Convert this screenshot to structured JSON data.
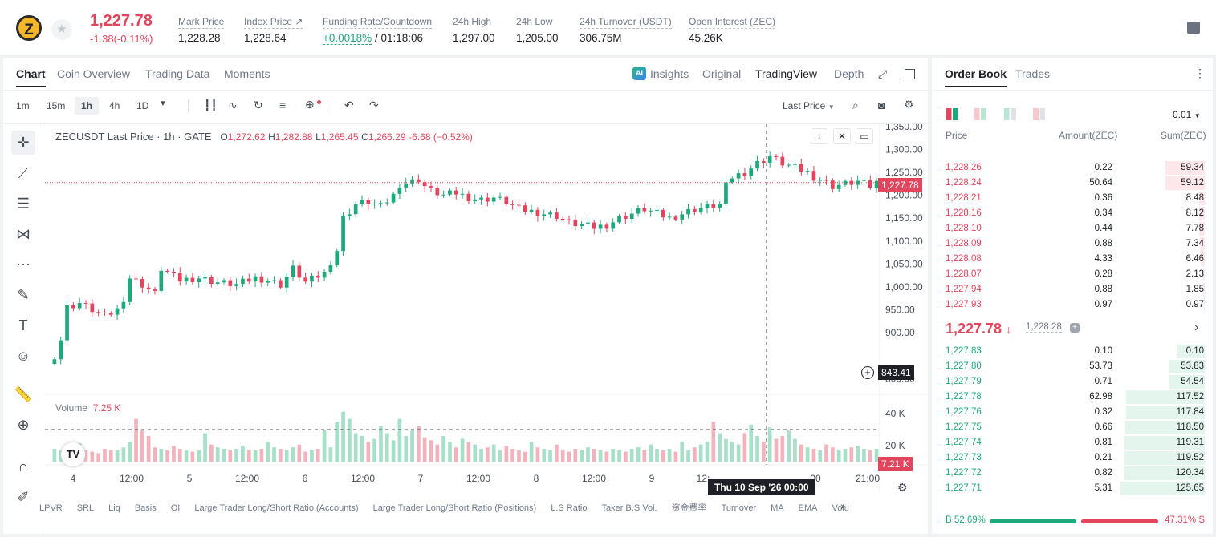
{
  "header": {
    "logo_letter": "Z",
    "last_price": "1,227.78",
    "change": "-1.38(-0.11%)",
    "stats": [
      {
        "label": "Mark Price",
        "value": "1,228.28"
      },
      {
        "label": "Index Price ↗",
        "value": "1,228.64"
      },
      {
        "label": "Funding Rate/Countdown",
        "value_green": "+0.0018%",
        "value": " / 01:18:06"
      },
      {
        "label": "24h High",
        "value": "1,297.00"
      },
      {
        "label": "24h Low",
        "value": "1,205.00"
      },
      {
        "label": "24h Turnover (USDT)",
        "value": "306.75M"
      },
      {
        "label": "Open Interest (ZEC)",
        "value": "45.26K"
      }
    ]
  },
  "chart_tabs": [
    "Chart",
    "Coin Overview",
    "Trading Data",
    "Moments"
  ],
  "view_tabs": {
    "insights": "Insights",
    "original": "Original",
    "tradingview": "TradingView",
    "depth": "Depth"
  },
  "intervals": [
    "1m",
    "15m",
    "1h",
    "4h",
    "1D"
  ],
  "price_source": "Last Price",
  "legend": {
    "symbol": "ZECUSDT Last Price · 1h · GATE",
    "o": "1,272.62",
    "h": "1,282.88",
    "l": "1,265.45",
    "c": "1,266.29",
    "chg": "-6.68 (−0.52%)"
  },
  "volume_legend": {
    "label": "Volume",
    "value": "7.25 K"
  },
  "crosshair": {
    "time": "Thu 10 Sep '26   00:00",
    "price": "843.41"
  },
  "indicators": [
    "LPVR",
    "SRL",
    "Liq",
    "Basis",
    "OI",
    "Large Trader Long/Short Ratio (Accounts)",
    "Large Trader Long/Short Ratio (Positions)",
    "L.S Ratio",
    "Taker B.S Vol.",
    "资金费率",
    "Turnover",
    "MA",
    "EMA",
    "Volu"
  ],
  "chart_data": {
    "type": "candlestick",
    "title": "ZECUSDT Last Price · 1h · GATE",
    "y_ticks": [
      "1,350.00",
      "1,300.00",
      "1,250.00",
      "1,200.00",
      "1,150.00",
      "1,100.00",
      "1,050.00",
      "1,000.00",
      "950.00",
      "900.00",
      "800.00"
    ],
    "ylim": [
      790,
      1355
    ],
    "x_ticks": [
      "4",
      "12:00",
      "5",
      "12:00",
      "6",
      "12:00",
      "7",
      "12:00",
      "8",
      "12:00",
      "9",
      "12:",
      "00",
      "21:00"
    ],
    "current_price": "1,227.78",
    "volume_ticks": [
      "40 K",
      "20 K"
    ],
    "current_volume": "7.21 K",
    "close_path": [
      [
        0,
        850
      ],
      [
        1,
        885
      ],
      [
        2,
        955
      ],
      [
        4,
        965
      ],
      [
        6,
        950
      ],
      [
        8,
        935
      ],
      [
        10,
        950
      ],
      [
        11,
        975
      ],
      [
        12,
        1020
      ],
      [
        14,
        1005
      ],
      [
        16,
        985
      ],
      [
        17,
        1040
      ],
      [
        20,
        1015
      ],
      [
        23,
        1020
      ],
      [
        26,
        1010
      ],
      [
        29,
        1005
      ],
      [
        32,
        1020
      ],
      [
        34,
        1015
      ],
      [
        36,
        1005
      ],
      [
        38,
        1040
      ],
      [
        40,
        1010
      ],
      [
        43,
        1030
      ],
      [
        45,
        1080
      ],
      [
        46,
        1150
      ],
      [
        48,
        1180
      ],
      [
        50,
        1185
      ],
      [
        52,
        1175
      ],
      [
        54,
        1200
      ],
      [
        55,
        1225
      ],
      [
        57,
        1230
      ],
      [
        58,
        1235
      ],
      [
        59,
        1220
      ],
      [
        60,
        1210
      ],
      [
        62,
        1200
      ],
      [
        64,
        1205
      ],
      [
        66,
        1195
      ],
      [
        68,
        1190
      ],
      [
        70,
        1195
      ],
      [
        72,
        1185
      ],
      [
        74,
        1170
      ],
      [
        76,
        1165
      ],
      [
        78,
        1160
      ],
      [
        80,
        1155
      ],
      [
        82,
        1140
      ],
      [
        84,
        1135
      ],
      [
        86,
        1130
      ],
      [
        88,
        1135
      ],
      [
        90,
        1150
      ],
      [
        92,
        1160
      ],
      [
        94,
        1170
      ],
      [
        96,
        1160
      ],
      [
        98,
        1150
      ],
      [
        100,
        1160
      ],
      [
        102,
        1170
      ],
      [
        104,
        1175
      ],
      [
        106,
        1180
      ],
      [
        107,
        1220
      ],
      [
        108,
        1240
      ],
      [
        110,
        1250
      ],
      [
        112,
        1270
      ],
      [
        114,
        1285
      ],
      [
        116,
        1270
      ],
      [
        118,
        1260
      ],
      [
        120,
        1250
      ],
      [
        121,
        1240
      ],
      [
        122,
        1235
      ],
      [
        124,
        1220
      ],
      [
        126,
        1225
      ],
      [
        128,
        1230
      ],
      [
        130,
        1220
      ],
      [
        131,
        1228
      ]
    ],
    "volumes": [
      9,
      8,
      7,
      12,
      13,
      8,
      7,
      6,
      9,
      8,
      8,
      10,
      14,
      30,
      22,
      18,
      10,
      9,
      8,
      11,
      9,
      8,
      7,
      8,
      20,
      12,
      10,
      9,
      8,
      9,
      11,
      8,
      8,
      9,
      14,
      10,
      9,
      8,
      10,
      12,
      7,
      8,
      9,
      22,
      10,
      28,
      35,
      30,
      20,
      18,
      14,
      16,
      25,
      20,
      15,
      30,
      18,
      22,
      25,
      17,
      15,
      12,
      18,
      14,
      10,
      16,
      14,
      12,
      9,
      10,
      12,
      8,
      11,
      9,
      8,
      7,
      14,
      10,
      9,
      8,
      12,
      8,
      7,
      9,
      8,
      10,
      9,
      8,
      7,
      9,
      8,
      7,
      9,
      10,
      8,
      12,
      9,
      8,
      9,
      7,
      14,
      8,
      10,
      12,
      14,
      28,
      20,
      16,
      14,
      12,
      20,
      26,
      18,
      14,
      24,
      16,
      18,
      22,
      16,
      12,
      10,
      9,
      8,
      12,
      10,
      8,
      9,
      10,
      11,
      9,
      8,
      9
    ]
  },
  "orderbook": {
    "tabs": [
      "Order Book",
      "Trades"
    ],
    "precision": "0.01",
    "headers": [
      "Price",
      "Amount(ZEC)",
      "Sum(ZEC)"
    ],
    "asks": [
      [
        "1,228.26",
        "0.22",
        "59.34",
        0.47
      ],
      [
        "1,228.24",
        "50.64",
        "59.12",
        0.47
      ],
      [
        "1,228.21",
        "0.36",
        "8.48",
        0.07
      ],
      [
        "1,228.16",
        "0.34",
        "8.12",
        0.065
      ],
      [
        "1,228.10",
        "0.44",
        "7.78",
        0.062
      ],
      [
        "1,228.09",
        "0.88",
        "7.34",
        0.058
      ],
      [
        "1,228.08",
        "4.33",
        "6.46",
        0.051
      ],
      [
        "1,228.07",
        "0.28",
        "2.13",
        0.017
      ],
      [
        "1,227.94",
        "0.88",
        "1.85",
        0.015
      ],
      [
        "1,227.93",
        "0.97",
        "0.97",
        0.008
      ]
    ],
    "mid_price": "1,227.78",
    "mid_ref": "1,228.28",
    "bids": [
      [
        "1,227.83",
        "0.10",
        "0.10",
        0.33
      ],
      [
        "1,227.80",
        "53.73",
        "53.83",
        0.43
      ],
      [
        "1,227.79",
        "0.71",
        "54.54",
        0.43
      ],
      [
        "1,227.78",
        "62.98",
        "117.52",
        0.93
      ],
      [
        "1,227.76",
        "0.32",
        "117.84",
        0.93
      ],
      [
        "1,227.75",
        "0.66",
        "118.50",
        0.94
      ],
      [
        "1,227.74",
        "0.81",
        "119.31",
        0.95
      ],
      [
        "1,227.73",
        "0.21",
        "119.52",
        0.95
      ],
      [
        "1,227.72",
        "0.82",
        "120.34",
        0.95
      ],
      [
        "1,227.71",
        "5.31",
        "125.65",
        1.0
      ]
    ],
    "buy_ratio": "B 52.69%",
    "sell_ratio": "47.31% S",
    "buy_fraction": 0.5269
  },
  "colors": {
    "up": "#1ea97c",
    "down": "#e2455c",
    "text": "#1e2026"
  }
}
